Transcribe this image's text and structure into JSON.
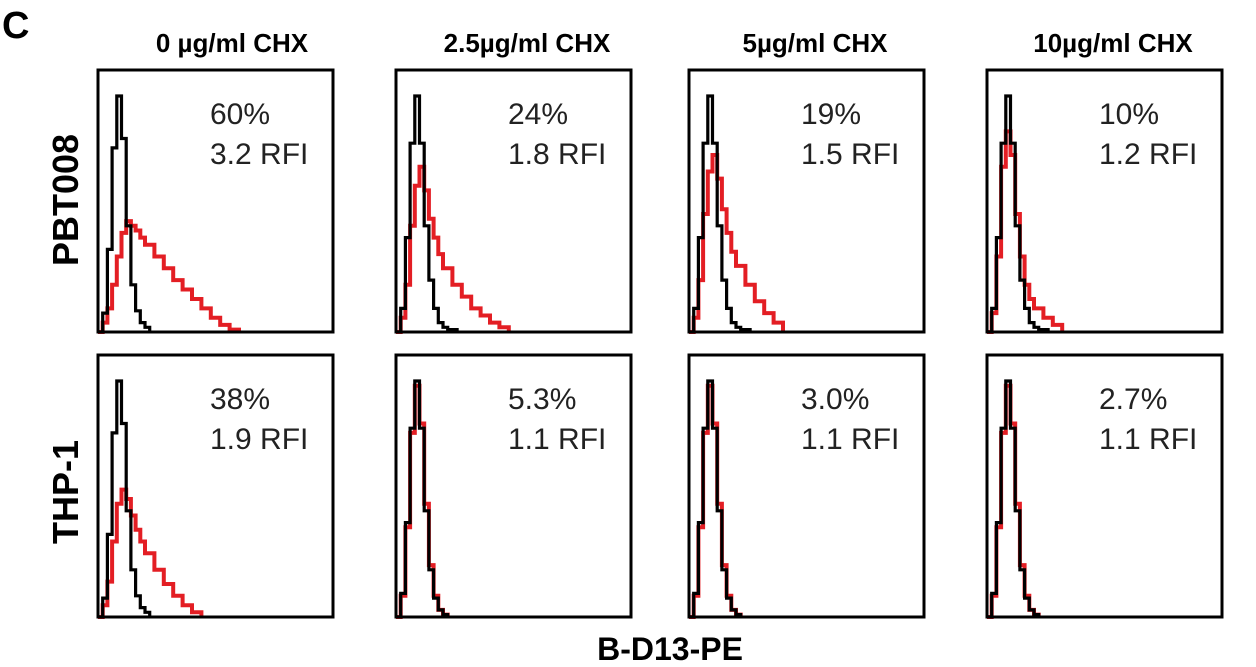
{
  "panel_letter": "C",
  "x_axis_label": "B-D13-PE",
  "columns": [
    "0 µg/ml CHX",
    "2.5µg/ml CHX",
    "5µg/ml CHX",
    "10µg/ml CHX"
  ],
  "rows": [
    "PBT008",
    "THP-1"
  ],
  "colors": {
    "control": "#000000",
    "stained": "#e31e24"
  },
  "chart_data": [
    {
      "type": "area",
      "row": "PBT008",
      "column": "0 µg/ml CHX",
      "annotation": {
        "percent": "60%",
        "rfi": "3.2 RFI"
      },
      "series": [
        {
          "name": "",
          "color": "#000000",
          "x": [
            0,
            0.02,
            0.04,
            0.06,
            0.08,
            0.1,
            0.12,
            0.14,
            0.16,
            0.18,
            0.2,
            0.22
          ],
          "y": [
            0,
            0.08,
            0.35,
            0.78,
            1.0,
            0.82,
            0.45,
            0.2,
            0.09,
            0.04,
            0.02,
            0
          ]
        },
        {
          "name": "",
          "color": "#e31e24",
          "x": [
            0,
            0.02,
            0.04,
            0.06,
            0.08,
            0.1,
            0.12,
            0.14,
            0.16,
            0.18,
            0.2,
            0.24,
            0.28,
            0.32,
            0.36,
            0.4,
            0.44,
            0.48,
            0.52,
            0.56,
            0.6
          ],
          "y": [
            0,
            0.04,
            0.1,
            0.2,
            0.32,
            0.42,
            0.47,
            0.45,
            0.43,
            0.4,
            0.37,
            0.32,
            0.27,
            0.22,
            0.18,
            0.14,
            0.1,
            0.06,
            0.03,
            0.01,
            0
          ]
        }
      ]
    },
    {
      "type": "area",
      "row": "PBT008",
      "column": "2.5µg/ml CHX",
      "annotation": {
        "percent": "24%",
        "rfi": "1.8 RFI"
      },
      "series": [
        {
          "name": "",
          "color": "#000000",
          "x": [
            0,
            0.02,
            0.04,
            0.06,
            0.08,
            0.1,
            0.12,
            0.14,
            0.16,
            0.18,
            0.2,
            0.22,
            0.26
          ],
          "y": [
            0,
            0.1,
            0.4,
            0.8,
            1.0,
            0.8,
            0.45,
            0.22,
            0.1,
            0.04,
            0.02,
            0.01,
            0
          ]
        },
        {
          "name": "",
          "color": "#e31e24",
          "x": [
            0,
            0.02,
            0.04,
            0.06,
            0.08,
            0.1,
            0.12,
            0.14,
            0.16,
            0.18,
            0.2,
            0.24,
            0.28,
            0.32,
            0.36,
            0.4,
            0.44,
            0.48
          ],
          "y": [
            0,
            0.06,
            0.2,
            0.45,
            0.62,
            0.7,
            0.6,
            0.48,
            0.4,
            0.33,
            0.27,
            0.2,
            0.15,
            0.1,
            0.07,
            0.04,
            0.02,
            0
          ]
        }
      ]
    },
    {
      "type": "area",
      "row": "PBT008",
      "column": "5µg/ml CHX",
      "annotation": {
        "percent": "19%",
        "rfi": "1.5 RFI"
      },
      "series": [
        {
          "name": "",
          "color": "#000000",
          "x": [
            0,
            0.02,
            0.04,
            0.06,
            0.08,
            0.1,
            0.12,
            0.14,
            0.16,
            0.18,
            0.2,
            0.22,
            0.26
          ],
          "y": [
            0,
            0.1,
            0.4,
            0.8,
            1.0,
            0.8,
            0.45,
            0.22,
            0.1,
            0.04,
            0.02,
            0.01,
            0
          ]
        },
        {
          "name": "",
          "color": "#e31e24",
          "x": [
            0,
            0.02,
            0.04,
            0.06,
            0.08,
            0.1,
            0.12,
            0.14,
            0.16,
            0.18,
            0.2,
            0.24,
            0.28,
            0.32,
            0.36,
            0.4
          ],
          "y": [
            0,
            0.06,
            0.22,
            0.5,
            0.68,
            0.75,
            0.65,
            0.52,
            0.42,
            0.34,
            0.28,
            0.2,
            0.13,
            0.08,
            0.04,
            0
          ]
        }
      ]
    },
    {
      "type": "area",
      "row": "PBT008",
      "column": "10µg/ml CHX",
      "annotation": {
        "percent": "10%",
        "rfi": "1.2 RFI"
      },
      "series": [
        {
          "name": "",
          "color": "#000000",
          "x": [
            0,
            0.02,
            0.04,
            0.06,
            0.08,
            0.1,
            0.12,
            0.14,
            0.16,
            0.18,
            0.2,
            0.22,
            0.26
          ],
          "y": [
            0,
            0.1,
            0.4,
            0.8,
            1.0,
            0.8,
            0.45,
            0.22,
            0.1,
            0.04,
            0.02,
            0.01,
            0
          ]
        },
        {
          "name": "",
          "color": "#e31e24",
          "x": [
            0,
            0.02,
            0.04,
            0.06,
            0.08,
            0.1,
            0.12,
            0.14,
            0.16,
            0.18,
            0.2,
            0.24,
            0.28,
            0.32
          ],
          "y": [
            0,
            0.08,
            0.32,
            0.7,
            0.85,
            0.75,
            0.5,
            0.32,
            0.2,
            0.14,
            0.1,
            0.06,
            0.03,
            0
          ]
        }
      ]
    },
    {
      "type": "area",
      "row": "THP-1",
      "column": "0 µg/ml CHX",
      "annotation": {
        "percent": "38%",
        "rfi": "1.9 RFI"
      },
      "series": [
        {
          "name": "",
          "color": "#000000",
          "x": [
            0,
            0.02,
            0.04,
            0.06,
            0.08,
            0.1,
            0.12,
            0.14,
            0.16,
            0.18,
            0.2,
            0.22
          ],
          "y": [
            0,
            0.08,
            0.35,
            0.78,
            1.0,
            0.82,
            0.45,
            0.2,
            0.09,
            0.04,
            0.02,
            0
          ]
        },
        {
          "name": "",
          "color": "#e31e24",
          "x": [
            0,
            0.02,
            0.04,
            0.06,
            0.08,
            0.1,
            0.12,
            0.14,
            0.16,
            0.18,
            0.2,
            0.24,
            0.28,
            0.32,
            0.36,
            0.4,
            0.44
          ],
          "y": [
            0,
            0.05,
            0.15,
            0.32,
            0.48,
            0.54,
            0.5,
            0.43,
            0.37,
            0.32,
            0.27,
            0.2,
            0.14,
            0.09,
            0.05,
            0.02,
            0
          ]
        }
      ]
    },
    {
      "type": "area",
      "row": "THP-1",
      "column": "2.5µg/ml CHX",
      "annotation": {
        "percent": "5.3%",
        "rfi": "1.1 RFI"
      },
      "series": [
        {
          "name": "",
          "color": "#000000",
          "x": [
            0,
            0.02,
            0.04,
            0.06,
            0.08,
            0.1,
            0.12,
            0.14,
            0.16,
            0.18,
            0.2,
            0.22
          ],
          "y": [
            0,
            0.1,
            0.4,
            0.8,
            1.0,
            0.8,
            0.45,
            0.2,
            0.08,
            0.03,
            0.01,
            0
          ]
        },
        {
          "name": "",
          "color": "#e31e24",
          "x": [
            0,
            0.02,
            0.04,
            0.06,
            0.08,
            0.1,
            0.12,
            0.14,
            0.16,
            0.18,
            0.2,
            0.22
          ],
          "y": [
            0,
            0.09,
            0.38,
            0.78,
            0.98,
            0.82,
            0.48,
            0.22,
            0.09,
            0.03,
            0.01,
            0
          ]
        }
      ]
    },
    {
      "type": "area",
      "row": "THP-1",
      "column": "5µg/ml CHX",
      "annotation": {
        "percent": "3.0%",
        "rfi": "1.1 RFI"
      },
      "series": [
        {
          "name": "",
          "color": "#000000",
          "x": [
            0,
            0.02,
            0.04,
            0.06,
            0.08,
            0.1,
            0.12,
            0.14,
            0.16,
            0.18,
            0.2,
            0.22
          ],
          "y": [
            0,
            0.1,
            0.4,
            0.8,
            1.0,
            0.8,
            0.45,
            0.2,
            0.08,
            0.03,
            0.01,
            0
          ]
        },
        {
          "name": "",
          "color": "#e31e24",
          "x": [
            0,
            0.02,
            0.04,
            0.06,
            0.08,
            0.1,
            0.12,
            0.14,
            0.16,
            0.18,
            0.2,
            0.22
          ],
          "y": [
            0,
            0.09,
            0.38,
            0.78,
            0.98,
            0.82,
            0.48,
            0.22,
            0.09,
            0.03,
            0.01,
            0
          ]
        }
      ]
    },
    {
      "type": "area",
      "row": "THP-1",
      "column": "10µg/ml CHX",
      "annotation": {
        "percent": "2.7%",
        "rfi": "1.1 RFI"
      },
      "series": [
        {
          "name": "",
          "color": "#000000",
          "x": [
            0,
            0.02,
            0.04,
            0.06,
            0.08,
            0.1,
            0.12,
            0.14,
            0.16,
            0.18,
            0.2,
            0.22
          ],
          "y": [
            0,
            0.1,
            0.4,
            0.8,
            1.0,
            0.8,
            0.45,
            0.2,
            0.08,
            0.03,
            0.01,
            0
          ]
        },
        {
          "name": "",
          "color": "#e31e24",
          "x": [
            0,
            0.02,
            0.04,
            0.06,
            0.08,
            0.1,
            0.12,
            0.14,
            0.16,
            0.18,
            0.2,
            0.22
          ],
          "y": [
            0,
            0.09,
            0.38,
            0.78,
            0.98,
            0.82,
            0.48,
            0.22,
            0.09,
            0.03,
            0.01,
            0
          ]
        }
      ]
    }
  ]
}
